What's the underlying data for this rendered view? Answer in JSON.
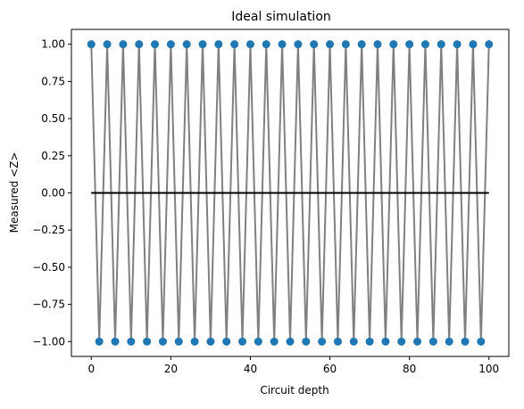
{
  "chart_data": {
    "type": "line",
    "title": "Ideal simulation",
    "xlabel": "Circuit depth",
    "ylabel": "Measured <Z>",
    "xlim": [
      -5,
      105
    ],
    "ylim": [
      -1.1,
      1.1
    ],
    "xticks": [
      0,
      20,
      40,
      60,
      80,
      100
    ],
    "xtick_labels": [
      "0",
      "20",
      "40",
      "60",
      "80",
      "100"
    ],
    "yticks": [
      1.0,
      0.75,
      0.5,
      0.25,
      0.0,
      -0.25,
      -0.5,
      -0.75,
      -1.0
    ],
    "ytick_labels": [
      "1.00",
      "0.75",
      "0.50",
      "0.25",
      "0.00",
      "−0.25",
      "−0.50",
      "−0.75",
      "−1.00"
    ],
    "grid": false,
    "series": [
      {
        "x_start": 0,
        "x_end": 100,
        "x_step": 2,
        "values_pattern": "alternating +1 at even depths 0,4,8,...,100 and -1 at depths 2,6,10,...,98",
        "line_color": "#808080",
        "marker_color": "#1f77b4"
      }
    ],
    "reference_line": {
      "y": 0,
      "color": "#000000"
    },
    "colors": {
      "line": "#808080",
      "marker": "#1f77b4",
      "reference": "#000000"
    }
  }
}
